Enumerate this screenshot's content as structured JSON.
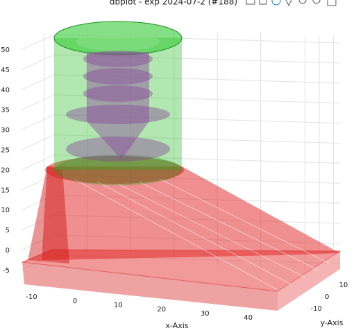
{
  "chart_data": {
    "type": "surface3d",
    "title": "dbplot - exp 2024-07-2 (#188)",
    "xlabel": "x-Axis",
    "ylabel": "y-Axis",
    "xlim": [
      -16,
      48
    ],
    "ylim": [
      -15,
      14
    ],
    "zlim": [
      -8,
      52
    ],
    "xticks": [
      -10,
      0,
      10,
      20,
      30,
      40
    ],
    "yticks": [
      -10,
      0,
      10
    ],
    "zticks": [
      -5,
      0,
      5,
      10,
      15,
      20,
      25,
      30,
      35,
      40,
      45,
      50
    ],
    "grid": true
  }
}
